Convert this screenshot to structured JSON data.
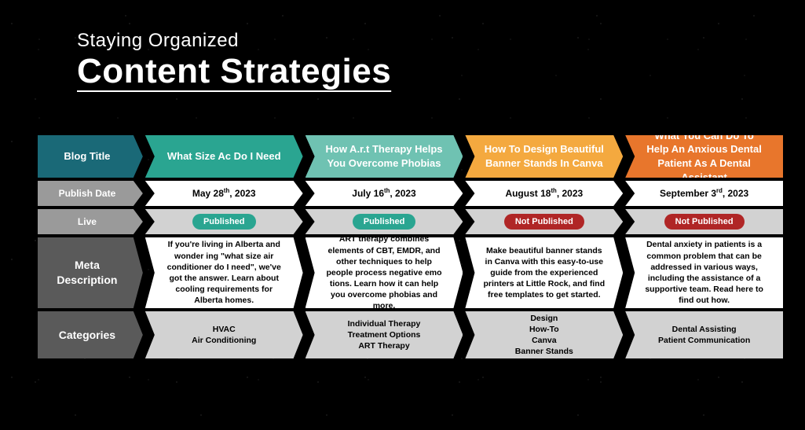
{
  "header": {
    "subtitle": "Staying Organized",
    "title": "Content Strategies"
  },
  "colors": {
    "header_bgs": [
      "#1a6977",
      "#2aa591",
      "#6fc2b2",
      "#f4a93f",
      "#e8762c"
    ],
    "label_header": "#1a6977",
    "label_gray": "#9a9a9a",
    "label_darkgray": "#5a5a5a",
    "published_pill": "#2aa591",
    "not_published_pill": "#b02626"
  },
  "rows": {
    "blog_title": {
      "label": "Blog Title",
      "cells": [
        "What Size Ac Do I Need",
        "How A.r.t Therapy Helps You Overcome Phobias",
        "How To Design Beautiful Banner Stands In Canva",
        "What You Can Do To Help An Anxious Dental Patient As A Dental Assistant"
      ]
    },
    "publish_date": {
      "label": "Publish Date",
      "cells": [
        {
          "pre": "May 28",
          "sup": "th",
          "post": ", 2023"
        },
        {
          "pre": "July 16",
          "sup": "th",
          "post": ", 2023"
        },
        {
          "pre": "August 18",
          "sup": "th",
          "post": ", 2023"
        },
        {
          "pre": "September 3",
          "sup": "rd",
          "post": ", 2023"
        }
      ]
    },
    "live": {
      "label": "Live",
      "cells": [
        {
          "text": "Published",
          "color": "#2aa591"
        },
        {
          "text": "Published",
          "color": "#2aa591"
        },
        {
          "text": "Not Published",
          "color": "#b02626"
        },
        {
          "text": "Not Published",
          "color": "#b02626"
        }
      ]
    },
    "meta": {
      "label": "Meta Description",
      "cells": [
        "If you're living in Alberta and wonder ing \"what size air conditioner do I need\", we've got the answer. Learn about cooling requirements for Alberta homes.",
        "ART therapy combines elements of CBT, EMDR, and other techniques to help people process negative emo tions. Learn how it can help you overcome phobias and more.",
        "Make beautiful banner stands in Canva with this easy-to-use guide from the experienced printers at Little Rock, and find free templates to get started.",
        "Dental anxiety in patients is a common problem that can be addressed in various ways, including the assistance of a supportive team. Read here to find out how."
      ]
    },
    "categories": {
      "label": "Categories",
      "cells": [
        "HVAC\nAir Conditioning",
        "Individual Therapy\nTreatment Options\nART Therapy",
        "Design\nHow-To\nCanva\nBanner Stands",
        "Dental Assisting\nPatient Communication"
      ]
    }
  }
}
